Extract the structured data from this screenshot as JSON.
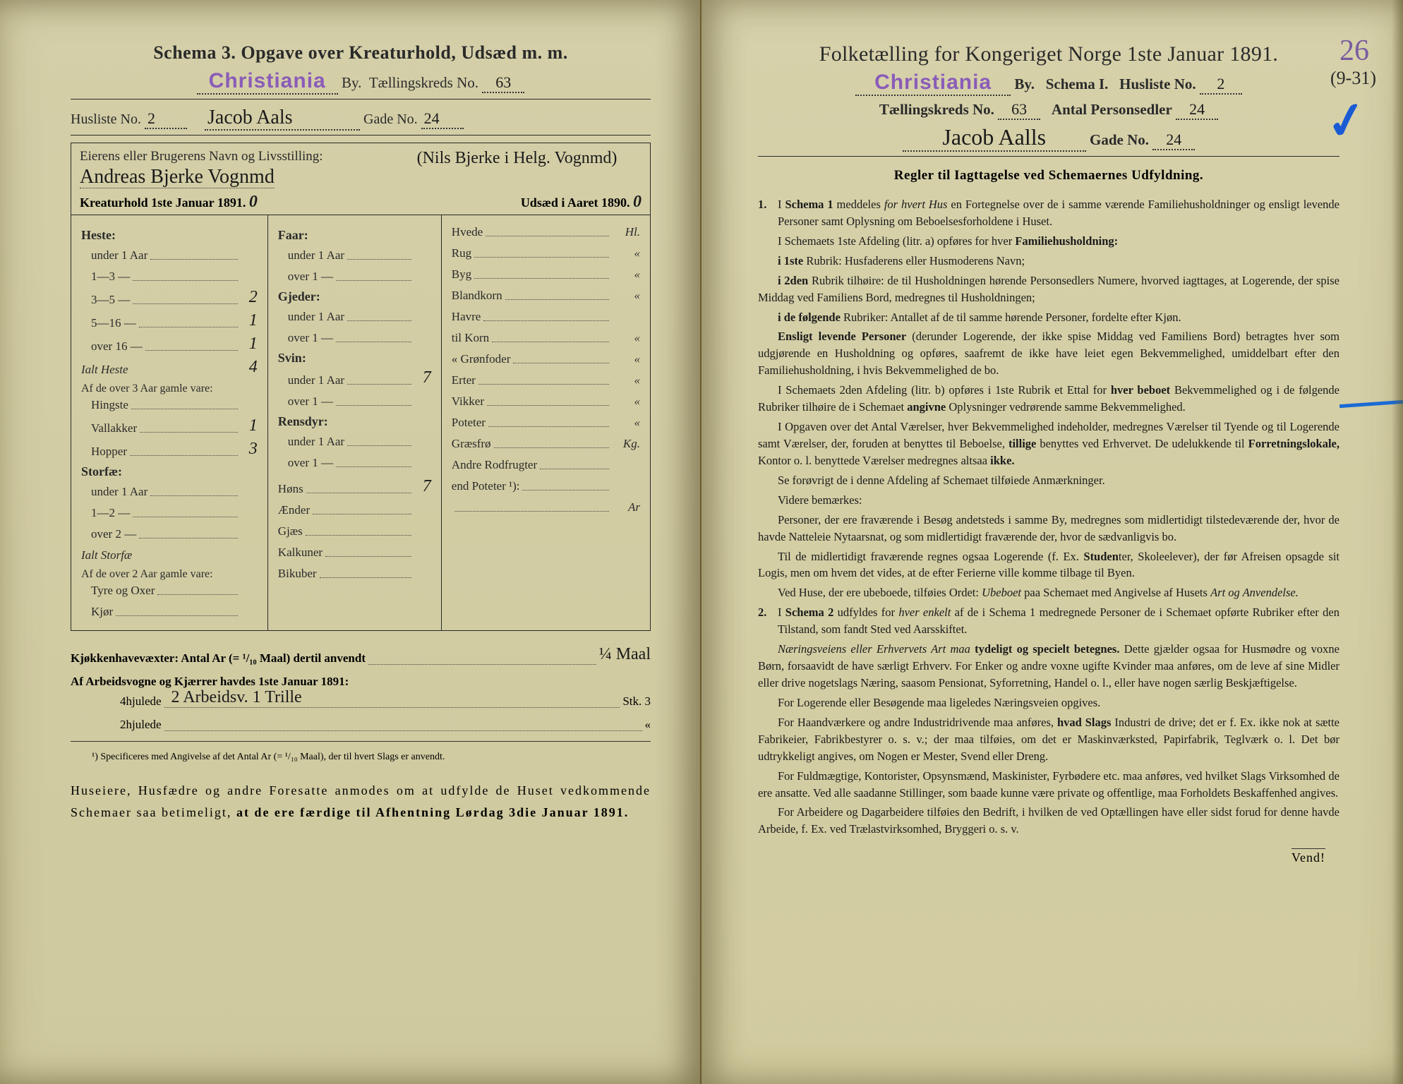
{
  "left": {
    "schema_title": "Schema 3.  Opgave over Kreaturhold, Udsæd m. m.",
    "city_stamp": "Christiania",
    "by_label": "By.",
    "kreds_label": "Tællingskreds No.",
    "kreds_no": "63",
    "husliste_label": "Husliste No.",
    "husliste_no": "2",
    "gade_name": "Jacob Aals",
    "gade_label": "Gade No.",
    "gade_no": "24",
    "eier_label": "Eierens eller Brugerens Navn og Livsstilling:",
    "eier_name": "Andreas Bjerke Vognmd",
    "eier_paren": "(Nils Bjerke i Helg. Vognmd)",
    "kreatur_label": "Kreaturhold 1ste Januar 1891.",
    "kreatur_val": "0",
    "udsaed_label": "Udsæd i Aaret 1890.",
    "udsaed_val": "0",
    "heste": {
      "head": "Heste:",
      "rows": [
        {
          "l": "under 1 Aar",
          "v": ""
        },
        {
          "l": "1—3    —",
          "v": ""
        },
        {
          "l": "3—5    —",
          "v": "2"
        },
        {
          "l": "5—16   —",
          "v": "1"
        },
        {
          "l": "over 16 —",
          "v": "1"
        }
      ],
      "total_l": "Ialt Heste",
      "total_v": "4",
      "gamle_head": "Af de over 3 Aar gamle vare:",
      "gamle_rows": [
        {
          "l": "Hingste",
          "v": ""
        },
        {
          "l": "Vallakker",
          "v": "1"
        },
        {
          "l": "Hopper",
          "v": "3"
        }
      ]
    },
    "storfae": {
      "head": "Storfæ:",
      "rows": [
        {
          "l": "under 1 Aar",
          "v": ""
        },
        {
          "l": "1—2    —",
          "v": ""
        },
        {
          "l": "over 2   —",
          "v": ""
        }
      ],
      "total_l": "Ialt Storfæ",
      "total_v": "",
      "gamle_head": "Af de over 2 Aar gamle vare:",
      "gamle_rows": [
        {
          "l": "Tyre og Oxer",
          "v": ""
        },
        {
          "l": "Kjør",
          "v": ""
        }
      ]
    },
    "col2_groups": [
      {
        "head": "Faar:",
        "rows": [
          {
            "l": "under 1 Aar",
            "v": ""
          },
          {
            "l": "over 1  —",
            "v": ""
          }
        ]
      },
      {
        "head": "Gjeder:",
        "rows": [
          {
            "l": "under 1 Aar",
            "v": ""
          },
          {
            "l": "over 1  —",
            "v": ""
          }
        ]
      },
      {
        "head": "Svin:",
        "rows": [
          {
            "l": "under 1 Aar",
            "v": "7"
          },
          {
            "l": "over 1  —",
            "v": ""
          }
        ]
      },
      {
        "head": "Rensdyr:",
        "rows": [
          {
            "l": "under 1 Aar",
            "v": ""
          },
          {
            "l": "over 1  —",
            "v": ""
          }
        ]
      }
    ],
    "col2_single": [
      {
        "l": "Høns",
        "v": "7"
      },
      {
        "l": "Ænder",
        "v": ""
      },
      {
        "l": "Gjæs",
        "v": ""
      },
      {
        "l": "Kalkuner",
        "v": ""
      },
      {
        "l": "Bikuber",
        "v": ""
      }
    ],
    "col3_rows": [
      {
        "l": "Hvede",
        "u": "Hl."
      },
      {
        "l": "Rug",
        "u": "«"
      },
      {
        "l": "Byg",
        "u": "«"
      },
      {
        "l": "Blandkorn",
        "u": "«"
      },
      {
        "l": "Havre",
        "u": ""
      },
      {
        "l": "  til Korn",
        "u": "«"
      },
      {
        "l": "«  Grønfoder",
        "u": "«"
      },
      {
        "l": "Erter",
        "u": "«"
      },
      {
        "l": "Vikker",
        "u": "«"
      },
      {
        "l": "Poteter",
        "u": "«"
      },
      {
        "l": "Græsfrø",
        "u": "Kg."
      },
      {
        "l": "Andre Rodfrugter",
        "u": ""
      },
      {
        "l": "end Poteter ¹):",
        "u": ""
      },
      {
        "l": "",
        "u": "Ar"
      }
    ],
    "kjokken_label": "Kjøkkenhavevæxter:  Antal Ar (= ¹/₁₀ Maal) dertil anvendt",
    "kjokken_val": "¼ Maal",
    "arbeid_label": "Af Arbeidsvogne og Kjærrer havdes 1ste Januar 1891:",
    "hj4_label": "4hjulede",
    "hj4_val": "2 Arbeidsv. 1 Trille",
    "hj4_stk": "Stk.  3",
    "hj2_label": "2hjulede",
    "hj2_stk": "«",
    "footnote": "¹) Specificeres med Angivelse af det Antal Ar (= ¹/₁₀ Maal), der til hvert Slags er anvendt.",
    "closing": "Huseiere, Husfædre og andre Foresatte anmodes om at udfylde de Huset vedkommende Schemaer saa betimeligt, at de ere færdige til Afhentning Lørdag 3die Januar 1891."
  },
  "right": {
    "title": "Folketælling for Kongeriget Norge 1ste Januar 1891.",
    "city_stamp": "Christiania",
    "by_label": "By.",
    "schema_label": "Schema I.",
    "husliste_label": "Husliste No.",
    "husliste_no": "2",
    "kreds_label": "Tællingskreds No.",
    "kreds_no": "63",
    "antal_label": "Antal Personsedler",
    "antal_no": "24",
    "gade_name": "Jacob Aalls",
    "gade_label": "Gade No.",
    "gade_no": "24",
    "annot_26": "26",
    "annot_paren": "(9-31)",
    "rules_title": "Regler til Iagttagelse ved Schemaernes Udfyldning.",
    "rules": [
      {
        "n": "1.",
        "t": "I <b>Schema 1</b> meddeles <i>for hvert Hus</i> en Fortegnelse over de i samme værende Familiehusholdninger og ensligt levende Personer samt Oplysning om Beboelsesforholdene i Huset."
      },
      {
        "n": "",
        "t": "I Schemaets 1ste Afdeling (litr. a) opføres for hver <b>Familiehusholdning:</b>"
      },
      {
        "n": "",
        "t": "<b>i 1ste</b> Rubrik: Husfaderens eller Husmoderens Navn;"
      },
      {
        "n": "",
        "t": "<b>i 2den</b> Rubrik tilhøire: de til Husholdningen hørende Personsedlers Numere, hvorved iagttages, at Logerende, der spise Middag ved Familiens Bord, medregnes til Husholdningen;"
      },
      {
        "n": "",
        "t": "<b>i de følgende</b> Rubriker: Antallet af de til samme hørende Personer, fordelte efter Kjøn."
      },
      {
        "n": "",
        "t": "<b>Ensligt levende Personer</b> (derunder Logerende, der ikke spise Middag ved Familiens Bord) betragtes hver som udgjørende en Husholdning og opføres, saafremt de ikke have leiet egen Bekvemmelighed, umiddelbart efter den Familiehusholdning, i hvis Bekvemmelighed de bo."
      },
      {
        "n": "",
        "t": "I Schemaets 2den Afdeling (litr. b) opføres i 1ste Rubrik et Ettal for <b>hver beboet</b> Bekvemmelighed og i de følgende Rubriker tilhøire de i Schemaet <b>angivne</b> Oplysninger vedrørende samme Bekvemmelighed."
      },
      {
        "n": "",
        "t": "I Opgaven over det Antal Værelser, hver Bekvemmelighed indeholder, medregnes Værelser til Tyende og til Logerende samt Værelser, der, foruden at benyttes til Beboelse, <b>tillige</b> benyttes ved Erhvervet. De udelukkende til <b>Forretningslokale,</b> Kontor o. l. benyttede Værelser medregnes altsaa <b>ikke.</b>"
      },
      {
        "n": "",
        "t": "Se forøvrigt de i denne Afdeling af Schemaet tilføiede Anmærkninger."
      },
      {
        "n": "",
        "t": "Videre bemærkes:"
      },
      {
        "n": "",
        "t": "Personer, der ere fraværende i Besøg andetsteds i samme By, medregnes som midlertidigt tilstedeværende der, hvor de havde Natteleie Nytaarsnat, og som midlertidigt fraværende der, hvor de sædvanligvis bo."
      },
      {
        "n": "",
        "t": "Til de midlertidigt fraværende regnes ogsaa Logerende (f. Ex. <b>Studen</b>ter, Skoleelever), der før Afreisen opsagde sit Logis, men om hvem det vides, at de efter Ferierne ville komme tilbage til Byen."
      },
      {
        "n": "",
        "t": "Ved Huse, der ere ubeboede, tilføies Ordet: <i>Ubeboet</i> paa Schemaet med Angivelse af Husets <i>Art og Anvendelse.</i>"
      },
      {
        "n": "2.",
        "t": "I <b>Schema 2</b> udfyldes for <i>hver enkelt</i> af de i Schema 1 medregnede Personer de i Schemaet opførte Rubriker efter den Tilstand, som fandt Sted ved Aarsskiftet."
      },
      {
        "n": "",
        "t": "<i>Næringsveiens eller Erhvervets Art maa</i> <b>tydeligt og specielt betegnes.</b> Dette gjælder ogsaa for Husmødre og voxne Børn, forsaavidt de have særligt Erhverv. For Enker og andre voxne ugifte Kvinder maa anføres, om de leve af sine Midler eller drive nogetslags Næring, saasom Pensionat, Syforretning, Handel o. l., eller have nogen særlig Beskjæftigelse."
      },
      {
        "n": "",
        "t": "For Logerende eller Besøgende maa ligeledes Næringsveien opgives."
      },
      {
        "n": "",
        "t": "For Haandværkere og andre Industridrivende maa anføres, <b>hvad Slags</b> Industri de drive; det er f. Ex. ikke nok at sætte Fabrikeier, Fabrikbestyrer o. s. v.; der maa tilføies, om det er Maskinværksted, Papirfabrik, Teglværk o. l.   Det bør udtrykkeligt angives, om Nogen er Mester, Svend eller Dreng."
      },
      {
        "n": "",
        "t": "For Fuldmægtige, Kontorister, Opsynsmænd, Maskinister, Fyrbødere etc. maa anføres, ved hvilket Slags Virksomhed de ere ansatte. Ved alle saadanne Stillinger, som baade kunne være private og offentlige, maa Forholdets Beskaffenhed angives."
      },
      {
        "n": "",
        "t": "For Arbeidere og Dagarbeidere tilføies den Bedrift, i hvilken de ved Optællingen have eller sidst forud for denne havde Arbeide, f. Ex. ved Trælastvirksomhed, Bryggeri o. s. v."
      }
    ],
    "vend": "Vend!"
  }
}
